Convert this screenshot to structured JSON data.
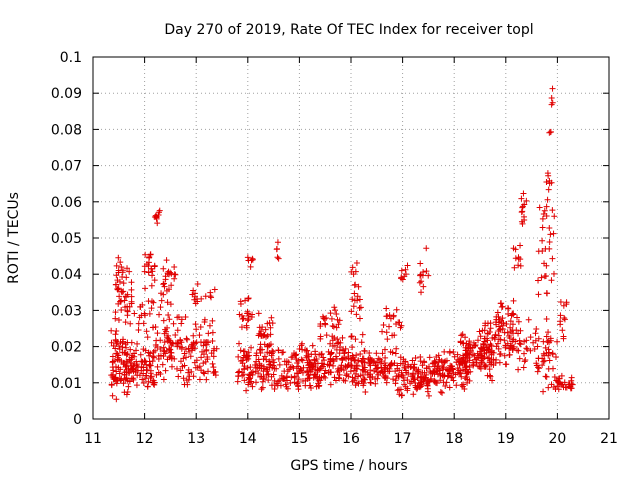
{
  "chart_data": {
    "type": "scatter",
    "title": "Day 270 of 2019, Rate Of TEC Index for receiver topl",
    "xlabel": "GPS time / hours",
    "ylabel": "ROTI / TECUs",
    "xlim": [
      11,
      21
    ],
    "ylim": [
      0,
      0.1
    ],
    "xticks": [
      "11",
      "12",
      "13",
      "14",
      "15",
      "16",
      "17",
      "18",
      "19",
      "20",
      "21"
    ],
    "yticks": [
      "0",
      "0.01",
      "0.02",
      "0.03",
      "0.04",
      "0.05",
      "0.06",
      "0.07",
      "0.08",
      "0.09",
      "0.1"
    ],
    "grid": true,
    "marker": "plus",
    "color": "#e00000",
    "series": [
      {
        "name": "ROTI",
        "clusters": [
          {
            "x": [
              11.35,
              11.7
            ],
            "y": [
              0.005,
              0.025
            ],
            "n": 90
          },
          {
            "x": [
              11.4,
              11.75
            ],
            "y": [
              0.025,
              0.046
            ],
            "n": 50
          },
          {
            "x": [
              11.7,
              12.2
            ],
            "y": [
              0.008,
              0.022
            ],
            "n": 80
          },
          {
            "x": [
              11.8,
              12.2
            ],
            "y": [
              0.022,
              0.035
            ],
            "n": 20
          },
          {
            "x": [
              12.0,
              12.2
            ],
            "y": [
              0.035,
              0.047
            ],
            "n": 20
          },
          {
            "x": [
              12.2,
              12.3
            ],
            "y": [
              0.053,
              0.059
            ],
            "n": 10
          },
          {
            "x": [
              12.2,
              12.7
            ],
            "y": [
              0.01,
              0.03
            ],
            "n": 70
          },
          {
            "x": [
              12.3,
              12.6
            ],
            "y": [
              0.03,
              0.045
            ],
            "n": 25
          },
          {
            "x": [
              12.7,
              13.4
            ],
            "y": [
              0.007,
              0.03
            ],
            "n": 90
          },
          {
            "x": [
              12.9,
              13.4
            ],
            "y": [
              0.03,
              0.038
            ],
            "n": 15
          },
          {
            "x": [
              13.8,
              14.3
            ],
            "y": [
              0.007,
              0.022
            ],
            "n": 70
          },
          {
            "x": [
              13.8,
              14.1
            ],
            "y": [
              0.022,
              0.034
            ],
            "n": 20
          },
          {
            "x": [
              14.0,
              14.1
            ],
            "y": [
              0.041,
              0.045
            ],
            "n": 6
          },
          {
            "x": [
              14.2,
              14.5
            ],
            "y": [
              0.015,
              0.03
            ],
            "n": 35
          },
          {
            "x": [
              14.3,
              14.9
            ],
            "y": [
              0.007,
              0.02
            ],
            "n": 70
          },
          {
            "x": [
              14.55,
              14.6
            ],
            "y": [
              0.041,
              0.05
            ],
            "n": 5
          },
          {
            "x": [
              14.9,
              15.6
            ],
            "y": [
              0.007,
              0.022
            ],
            "n": 120
          },
          {
            "x": [
              15.4,
              15.8
            ],
            "y": [
              0.02,
              0.032
            ],
            "n": 25
          },
          {
            "x": [
              15.6,
              16.3
            ],
            "y": [
              0.007,
              0.025
            ],
            "n": 120
          },
          {
            "x": [
              16.0,
              16.2
            ],
            "y": [
              0.025,
              0.045
            ],
            "n": 20
          },
          {
            "x": [
              16.3,
              16.9
            ],
            "y": [
              0.008,
              0.02
            ],
            "n": 80
          },
          {
            "x": [
              16.6,
              17.0
            ],
            "y": [
              0.02,
              0.033
            ],
            "n": 20
          },
          {
            "x": [
              16.9,
              17.1
            ],
            "y": [
              0.035,
              0.043
            ],
            "n": 8
          },
          {
            "x": [
              16.9,
              17.6
            ],
            "y": [
              0.005,
              0.018
            ],
            "n": 110
          },
          {
            "x": [
              17.3,
              17.5
            ],
            "y": [
              0.03,
              0.048
            ],
            "n": 12
          },
          {
            "x": [
              17.6,
              18.3
            ],
            "y": [
              0.007,
              0.02
            ],
            "n": 110
          },
          {
            "x": [
              18.1,
              18.8
            ],
            "y": [
              0.01,
              0.025
            ],
            "n": 100
          },
          {
            "x": [
              18.5,
              19.1
            ],
            "y": [
              0.012,
              0.03
            ],
            "n": 70
          },
          {
            "x": [
              18.8,
              19.15
            ],
            "y": [
              0.022,
              0.035
            ],
            "n": 25
          },
          {
            "x": [
              19.15,
              19.3
            ],
            "y": [
              0.04,
              0.049
            ],
            "n": 10
          },
          {
            "x": [
              19.1,
              19.6
            ],
            "y": [
              0.012,
              0.03
            ],
            "n": 40
          },
          {
            "x": [
              19.3,
              19.4
            ],
            "y": [
              0.052,
              0.064
            ],
            "n": 12
          },
          {
            "x": [
              19.6,
              20.0
            ],
            "y": [
              0.005,
              0.03
            ],
            "n": 45
          },
          {
            "x": [
              19.6,
              19.95
            ],
            "y": [
              0.03,
              0.06
            ],
            "n": 30
          },
          {
            "x": [
              19.75,
              19.9
            ],
            "y": [
              0.06,
              0.07
            ],
            "n": 8
          },
          {
            "x": [
              19.82,
              19.9
            ],
            "y": [
              0.078,
              0.08
            ],
            "n": 3
          },
          {
            "x": [
              19.88,
              19.92
            ],
            "y": [
              0.084,
              0.092
            ],
            "n": 4
          },
          {
            "x": [
              20.0,
              20.3
            ],
            "y": [
              0.007,
              0.012
            ],
            "n": 25
          },
          {
            "x": [
              20.05,
              20.2
            ],
            "y": [
              0.02,
              0.037
            ],
            "n": 12
          }
        ]
      }
    ]
  }
}
